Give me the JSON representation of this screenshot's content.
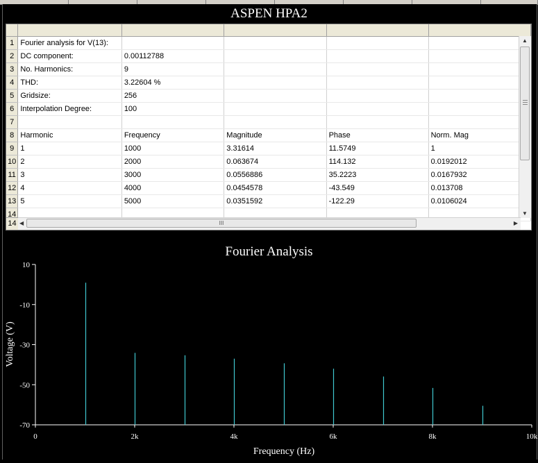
{
  "window": {
    "title": "ASPEN HPA2"
  },
  "grid": {
    "column_headers": [
      "",
      "",
      "",
      "",
      ""
    ],
    "row_numbers": [
      "1",
      "2",
      "3",
      "4",
      "5",
      "6",
      "7",
      "8",
      "9",
      "10",
      "11",
      "12",
      "13",
      "14"
    ],
    "rows": [
      [
        "Fourier analysis for V(13):",
        "",
        "",
        "",
        ""
      ],
      [
        "DC component:",
        "0.00112788",
        "",
        "",
        ""
      ],
      [
        "No. Harmonics:",
        "9",
        "",
        "",
        ""
      ],
      [
        "THD:",
        "3.22604 %",
        "",
        "",
        ""
      ],
      [
        "Gridsize:",
        "256",
        "",
        "",
        ""
      ],
      [
        "Interpolation Degree:",
        "100",
        "",
        "",
        ""
      ],
      [
        "",
        "",
        "",
        "",
        ""
      ],
      [
        "Harmonic",
        "Frequency",
        "Magnitude",
        "Phase",
        "Norm. Mag"
      ],
      [
        "1",
        "1000",
        "3.31614",
        "11.5749",
        "1"
      ],
      [
        "2",
        "2000",
        "0.063674",
        "114.132",
        "0.0192012"
      ],
      [
        "3",
        "3000",
        "0.0556886",
        "35.2223",
        "0.0167932"
      ],
      [
        "4",
        "4000",
        "0.0454578",
        "-43.549",
        "0.013708"
      ],
      [
        "5",
        "5000",
        "0.0351592",
        "-122.29",
        "0.0106024"
      ],
      [
        "",
        "",
        "",
        "",
        ""
      ]
    ],
    "hscroll_grip": "III"
  },
  "chart_data": {
    "type": "bar",
    "title": "Fourier Analysis",
    "xlabel": "Frequency (Hz)",
    "ylabel": "Voltage (V)",
    "xlim": [
      0,
      10000
    ],
    "ylim": [
      -70,
      10
    ],
    "baseline": -70,
    "x": [
      1000,
      2000,
      3000,
      4000,
      5000,
      6000,
      7000,
      8000,
      9000
    ],
    "values": [
      0.9,
      -34.1,
      -35.3,
      -37.0,
      -39.3,
      -42.0,
      -45.9,
      -51.6,
      -60.5
    ],
    "x_ticks": [
      0,
      2000,
      4000,
      6000,
      8000,
      10000
    ],
    "x_tick_labels": [
      "0",
      "2k",
      "4k",
      "6k",
      "8k",
      "10k"
    ],
    "y_ticks": [
      10,
      -10,
      -30,
      -50,
      -70
    ],
    "y_tick_labels": [
      "10",
      "-10",
      "-30",
      "-50",
      "-70"
    ],
    "bar_color": "#40c8d0",
    "axis_color": "#ffffff",
    "grid": false
  }
}
